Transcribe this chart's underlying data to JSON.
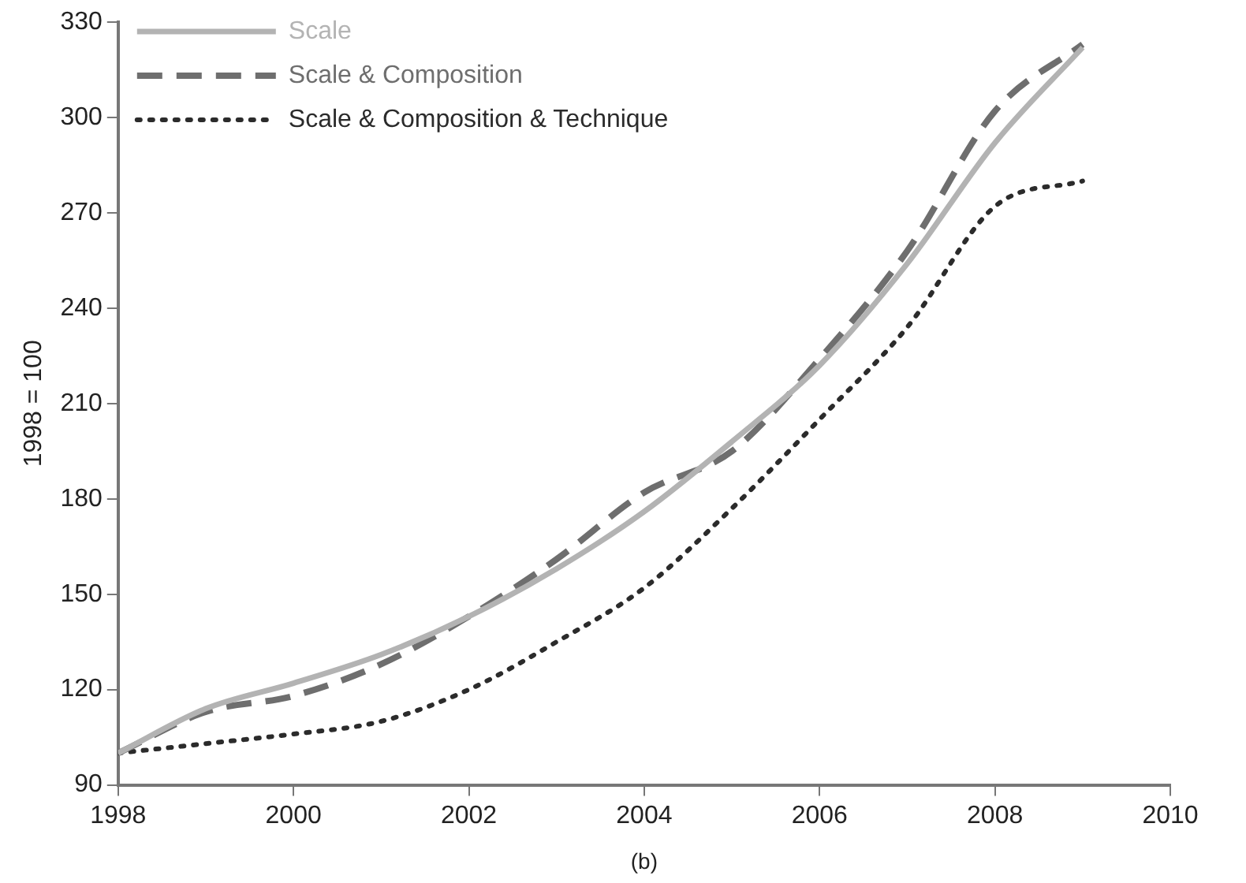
{
  "chart_data": {
    "type": "line",
    "ylabel": "1998 = 100",
    "annotations": [
      "(b)"
    ],
    "x": [
      1998,
      1999,
      2000,
      2001,
      2002,
      2003,
      2004,
      2005,
      2006,
      2007,
      2008,
      2009
    ],
    "series": [
      {
        "name": "Scale",
        "color": "#b3b3b3",
        "line_style": "solid",
        "values": [
          100,
          114,
          122,
          131,
          143,
          158,
          176,
          198,
          222,
          254,
          292,
          322
        ]
      },
      {
        "name": "Scale & Composition",
        "color": "#6e6e6e",
        "line_style": "dashed",
        "values": [
          100,
          113,
          118,
          128,
          143,
          161,
          182,
          195,
          224,
          258,
          302,
          323
        ]
      },
      {
        "name": "Scale & Composition & Technique",
        "color": "#2b2b2b",
        "line_style": "dotted",
        "values": [
          100,
          103,
          106,
          110,
          120,
          135,
          152,
          177,
          205,
          234,
          272,
          280
        ]
      }
    ],
    "xlim": [
      1998,
      2010
    ],
    "xticks": [
      1998,
      2000,
      2002,
      2004,
      2006,
      2008,
      2010
    ],
    "ylim": [
      90,
      330
    ],
    "yticks": [
      90,
      120,
      150,
      180,
      210,
      240,
      270,
      300,
      330
    ],
    "grid": false,
    "legend": "top left",
    "marker": "none"
  }
}
